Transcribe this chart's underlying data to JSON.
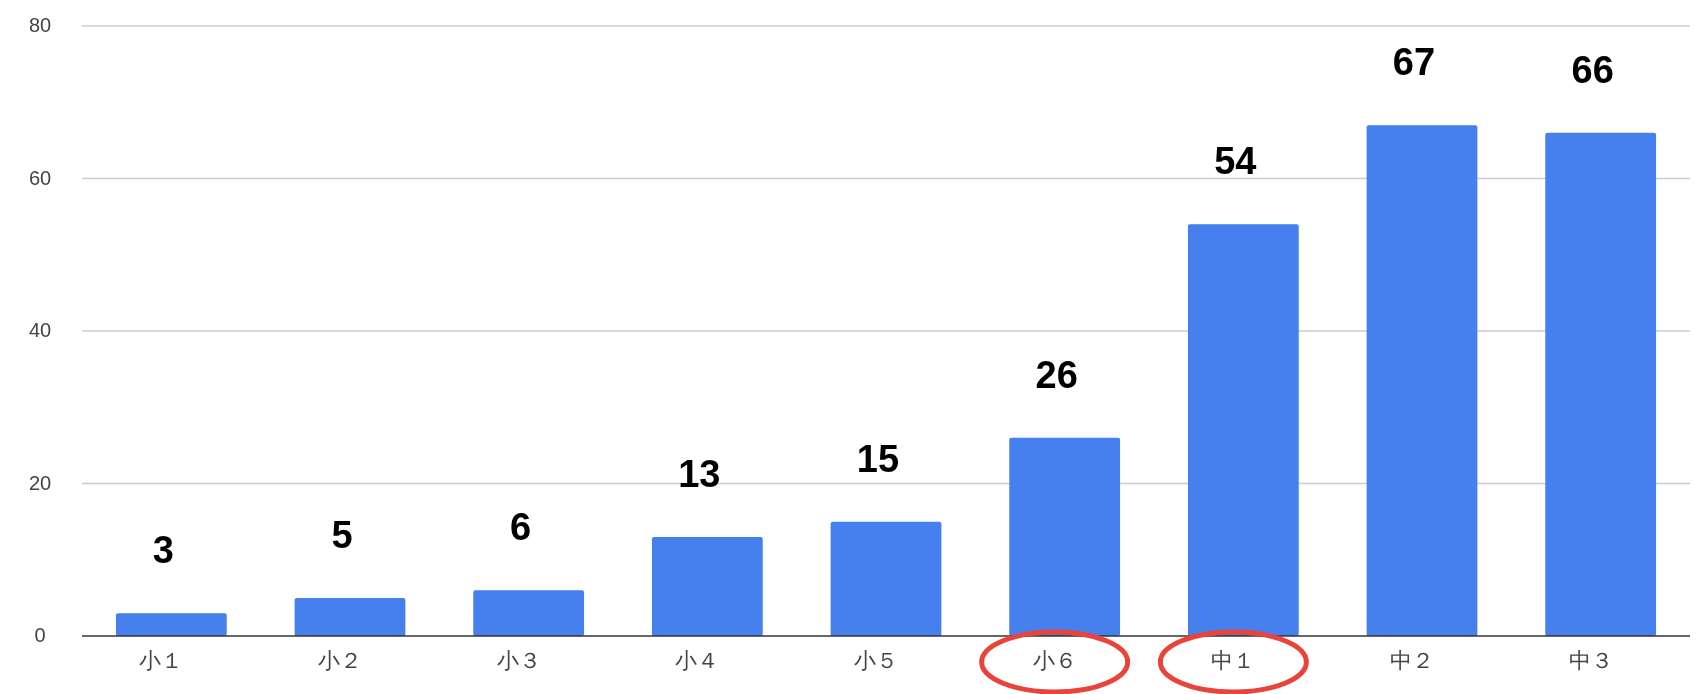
{
  "chart_data": {
    "type": "bar",
    "categories": [
      "小１",
      "小２",
      "小３",
      "小４",
      "小５",
      "小６",
      "中１",
      "中２",
      "中３"
    ],
    "values": [
      3,
      5,
      6,
      13,
      15,
      26,
      54,
      67,
      66
    ],
    "color": "#4680ee",
    "ylim": [
      0,
      80
    ],
    "yticks": [
      0,
      20,
      40,
      60,
      80
    ],
    "grid": "y",
    "data_labels": true
  }
}
